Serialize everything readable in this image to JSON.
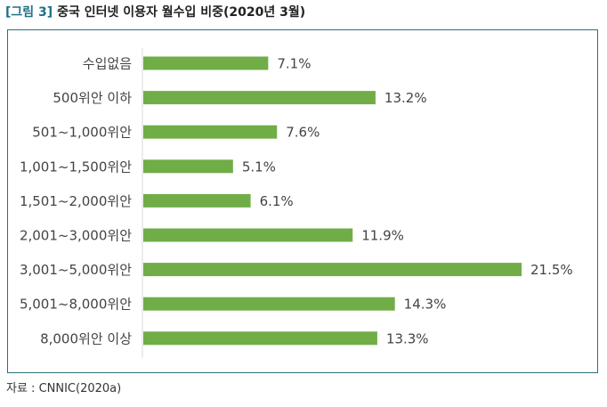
{
  "header": {
    "figure_label": "[그림 3]",
    "title": "중국 인터넷 이용자 월수입 비중(2020년 3월)"
  },
  "chart_data": {
    "type": "bar",
    "orientation": "horizontal",
    "categories": [
      "수입없음",
      "500위안 이하",
      "501~1,000위안",
      "1,001~1,500위안",
      "1,501~2,000위안",
      "2,001~3,000위안",
      "3,001~5,000위안",
      "5,001~8,000위안",
      "8,000위안 이상"
    ],
    "values": [
      7.1,
      13.2,
      7.6,
      5.1,
      6.1,
      11.9,
      21.5,
      14.3,
      13.3
    ],
    "value_labels": [
      "7.1%",
      "13.2%",
      "7.6%",
      "5.1%",
      "6.1%",
      "11.9%",
      "21.5%",
      "14.3%",
      "13.3%"
    ],
    "unit": "%",
    "xlim": [
      0,
      21.5
    ],
    "bar_color": "#70ad47",
    "grid": false,
    "legend": "none"
  },
  "source": "자료 : CNNIC(2020a)"
}
